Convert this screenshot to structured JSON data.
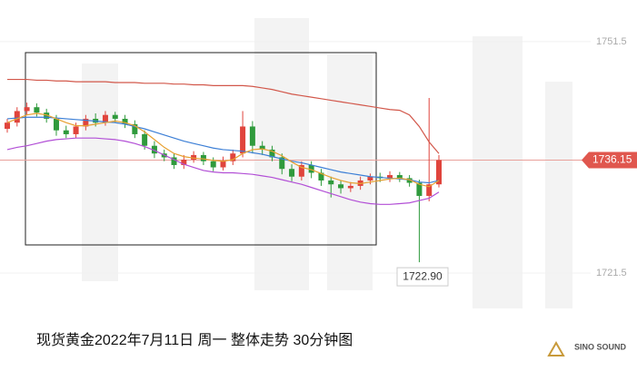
{
  "chart_data": {
    "type": "candlestick",
    "title": "现货黄金2022年7月11日 周一 整体走势 30分钟图",
    "brand": "SINO SOUND",
    "ylim": [
      1708.8,
      1756.9
    ],
    "yticks": [
      1751.5,
      1721.5
    ],
    "up_color": "#e0443c",
    "down_color": "#2f9a3c",
    "open": [
      1740.2,
      1741,
      1742.5,
      1743,
      1742.3,
      1741.5,
      1740,
      1739.5,
      1740.5,
      1741.5,
      1741,
      1742,
      1741.5,
      1740.8,
      1739.5,
      1738,
      1737,
      1736.5,
      1735.5,
      1736.2,
      1736.8,
      1736,
      1735.2,
      1736,
      1737,
      1740.5,
      1738,
      1737.5,
      1736.5,
      1735,
      1734,
      1735.5,
      1734.5,
      1733.5,
      1733,
      1732.5,
      1732.8,
      1733.5,
      1734,
      1733.8,
      1734.2,
      1733.8,
      1733.2,
      1731.5,
      1733
    ],
    "high": [
      1741.5,
      1743,
      1743.6,
      1743.5,
      1742.8,
      1742,
      1740.6,
      1741,
      1742,
      1742.2,
      1742.5,
      1742.4,
      1742,
      1741.3,
      1740,
      1738.6,
      1737.5,
      1737,
      1736.8,
      1737.3,
      1737.2,
      1736.5,
      1736.6,
      1737.5,
      1742.5,
      1741.2,
      1738.6,
      1738,
      1737,
      1735.6,
      1736,
      1736,
      1735,
      1734,
      1733.5,
      1733.3,
      1734,
      1734.4,
      1734.5,
      1734.7,
      1734.6,
      1734.2,
      1733.6,
      1744.2,
      1736.8
    ],
    "low": [
      1739.7,
      1740.5,
      1742,
      1741.8,
      1741,
      1739.3,
      1739,
      1739,
      1740,
      1740.5,
      1740.6,
      1741,
      1740.3,
      1739,
      1737.5,
      1736.4,
      1736,
      1735,
      1735,
      1735.8,
      1735.5,
      1734.7,
      1734.8,
      1735.5,
      1736.5,
      1737,
      1736.8,
      1736,
      1734.3,
      1733.4,
      1733.5,
      1733.8,
      1732.8,
      1731.3,
      1731.8,
      1732,
      1732.3,
      1733,
      1733.3,
      1733.3,
      1733.3,
      1732.7,
      1722.9,
      1730.8,
      1732.6
    ],
    "close": [
      1741,
      1742.5,
      1743,
      1742.3,
      1741.5,
      1740,
      1739.5,
      1740.5,
      1741.5,
      1741,
      1742,
      1741.5,
      1740.8,
      1739.5,
      1738,
      1737,
      1736.5,
      1735.5,
      1736.2,
      1736.8,
      1736,
      1735.2,
      1736,
      1737,
      1740.5,
      1738,
      1737.5,
      1736.5,
      1735,
      1734,
      1735.5,
      1734.5,
      1733.5,
      1733,
      1732.5,
      1732.8,
      1733.5,
      1734,
      1733.8,
      1734.2,
      1733.8,
      1733.2,
      1731.5,
      1733,
      1736.15
    ],
    "lines": [
      {
        "color": "#d2574a",
        "values": [
          1746.6,
          1746.6,
          1746.6,
          1746.5,
          1746.5,
          1746.4,
          1746.4,
          1746.3,
          1746.3,
          1746.3,
          1746.3,
          1746.2,
          1746.2,
          1746.2,
          1746.1,
          1746.1,
          1746.1,
          1746.0,
          1746.0,
          1745.9,
          1745.9,
          1745.8,
          1745.8,
          1745.8,
          1745.8,
          1745.7,
          1745.5,
          1745.3,
          1745.0,
          1744.7,
          1744.5,
          1744.3,
          1744.1,
          1743.9,
          1743.7,
          1743.5,
          1743.3,
          1743.1,
          1742.9,
          1742.7,
          1742.6,
          1742.0,
          1740.5,
          1738.5,
          1737.0
        ]
      },
      {
        "color": "#3c7fd6",
        "values": [
          1741.5,
          1741.6,
          1741.7,
          1741.7,
          1741.7,
          1741.6,
          1741.5,
          1741.4,
          1741.3,
          1741.2,
          1741.1,
          1741.0,
          1740.8,
          1740.5,
          1740.2,
          1739.8,
          1739.4,
          1739.0,
          1738.6,
          1738.3,
          1738.0,
          1737.7,
          1737.5,
          1737.4,
          1737.3,
          1737.1,
          1736.9,
          1736.6,
          1736.3,
          1736.0,
          1735.8,
          1735.5,
          1735.2,
          1734.9,
          1734.6,
          1734.4,
          1734.2,
          1734.0,
          1733.9,
          1733.8,
          1733.7,
          1733.6,
          1733.3,
          1733.2,
          1733.5
        ]
      },
      {
        "color": "#b24fd6",
        "values": [
          1737.5,
          1737.8,
          1738.0,
          1738.3,
          1738.6,
          1738.8,
          1738.9,
          1739.0,
          1739.0,
          1739.0,
          1738.9,
          1738.8,
          1738.6,
          1738.3,
          1737.9,
          1737.4,
          1736.8,
          1736.2,
          1735.6,
          1735.2,
          1734.8,
          1734.6,
          1734.5,
          1734.5,
          1734.4,
          1734.3,
          1734.1,
          1733.9,
          1733.6,
          1733.3,
          1733.0,
          1732.6,
          1732.2,
          1731.8,
          1731.4,
          1731.0,
          1730.7,
          1730.5,
          1730.4,
          1730.4,
          1730.5,
          1730.6,
          1730.9,
          1731.2,
          1732.0
        ]
      },
      {
        "color": "#e8a030",
        "values": [
          1741.0,
          1741.5,
          1742.0,
          1742.2,
          1742.0,
          1741.5,
          1741.0,
          1740.6,
          1740.6,
          1740.8,
          1741.0,
          1741.2,
          1741.0,
          1740.6,
          1739.8,
          1738.8,
          1737.8,
          1737.0,
          1736.6,
          1736.4,
          1736.3,
          1736.1,
          1736.0,
          1736.2,
          1737.0,
          1737.5,
          1737.6,
          1737.3,
          1736.7,
          1735.9,
          1735.2,
          1734.9,
          1734.4,
          1733.9,
          1733.5,
          1733.2,
          1733.1,
          1733.3,
          1733.5,
          1733.7,
          1733.8,
          1733.6,
          1733.0,
          1732.7,
          1733.5
        ]
      }
    ],
    "last_price": 1736.15,
    "low_label": {
      "value": 1722.9,
      "label": "1722.90"
    }
  }
}
